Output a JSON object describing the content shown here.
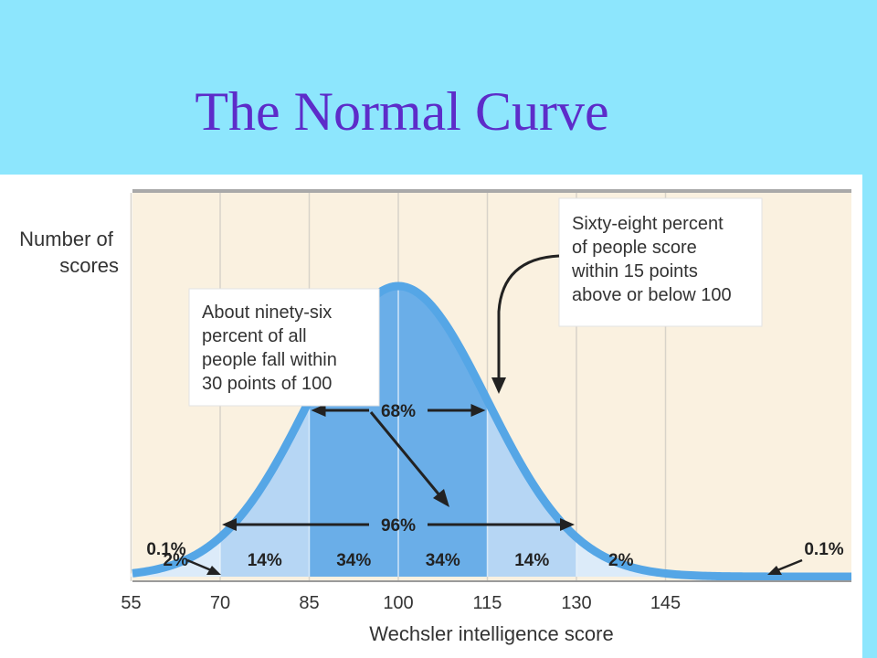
{
  "slide": {
    "title": "The Normal Curve"
  },
  "colors": {
    "background": "#8de6fd",
    "title": "#5d2cc9",
    "panel": "#faf1e0",
    "curve": "#55a6e6",
    "band_inner": "#6aaee8",
    "band_mid": "#b6d6f4",
    "band_outer": "#dcebf9"
  },
  "chart_data": {
    "type": "area",
    "title": "",
    "ylabel_lines": [
      "Number of",
      "scores"
    ],
    "xlabel": "Wechsler intelligence score",
    "x_ticks": [
      55,
      70,
      85,
      100,
      115,
      130,
      145
    ],
    "x_tick_labels": [
      "55",
      "70",
      "85",
      "100",
      "115",
      "130",
      "145"
    ],
    "xlim": [
      40,
      160
    ],
    "distribution": {
      "mean": 100,
      "sd": 15
    },
    "grid": true,
    "regions": [
      {
        "from": 40,
        "to": 55,
        "label": "0.1%"
      },
      {
        "from": 55,
        "to": 70,
        "label": "2%"
      },
      {
        "from": 70,
        "to": 85,
        "label": "14%"
      },
      {
        "from": 85,
        "to": 100,
        "label": "34%"
      },
      {
        "from": 100,
        "to": 115,
        "label": "34%"
      },
      {
        "from": 115,
        "to": 130,
        "label": "14%"
      },
      {
        "from": 130,
        "to": 145,
        "label": "2%"
      },
      {
        "from": 145,
        "to": 160,
        "label": "0.1%"
      }
    ],
    "ranges": [
      {
        "from": 85,
        "to": 115,
        "label": "68%"
      },
      {
        "from": 70,
        "to": 130,
        "label": "96%"
      }
    ],
    "annotations": [
      {
        "lines": [
          "About ninety-six",
          "percent of all",
          "people fall within",
          "30 points of 100"
        ]
      },
      {
        "lines": [
          "Sixty-eight percent",
          "of people score",
          "within 15 points",
          "above or below 100"
        ]
      }
    ]
  }
}
